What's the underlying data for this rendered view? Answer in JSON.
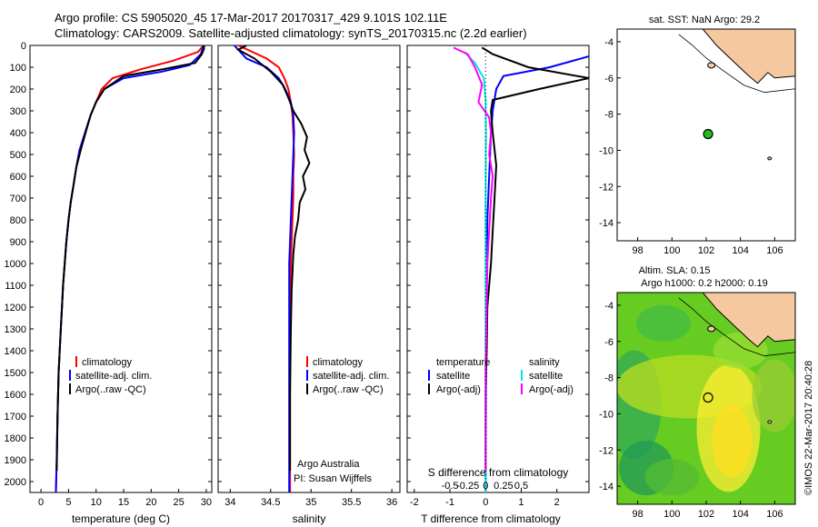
{
  "header": {
    "title_line1": "Argo profile: CS 5905020_45 17-Mar-2017 20170317_429 9.101S 102.11E",
    "title_line2": "Climatology: CARS2009. Satellite-adjusted climatology: synTS_20170315.nc (2.2d earlier)"
  },
  "colors": {
    "climatology": "#ff0000",
    "satellite": "#0000ff",
    "argo": "#000000",
    "sat_salinity": "#00e5e5",
    "argo_salinity": "#ff00ff",
    "land": "#f5c8a0",
    "float_marker": "#22bb22"
  },
  "depth_axis": {
    "ylim": [
      0,
      2050
    ],
    "ticks": [
      0,
      100,
      200,
      300,
      400,
      500,
      600,
      700,
      800,
      900,
      1000,
      1100,
      1200,
      1300,
      1400,
      1500,
      1600,
      1700,
      1800,
      1900,
      2000
    ]
  },
  "panel_temp": {
    "xlabel": "temperature (deg C)",
    "xlim": [
      -2,
      31
    ],
    "xticks": [
      0,
      5,
      10,
      15,
      20,
      25,
      30
    ],
    "legend": [
      "climatology",
      "satellite-adj. clim.",
      "Argo(..raw -QC)"
    ]
  },
  "panel_sal": {
    "xlabel": "salinity",
    "xlim": [
      33.85,
      36.1
    ],
    "xticks": [
      34,
      34.5,
      35,
      35.5,
      36
    ],
    "xtick_labels": [
      "34",
      "34.5",
      "35",
      "35.5",
      "36"
    ],
    "legend": [
      "climatology",
      "satellite-adj. clim.",
      "Argo(..raw -QC)"
    ],
    "note1": "Argo Australia",
    "note2": "PI: Susan Wijffels"
  },
  "panel_diff": {
    "xlabel_bottom": "T difference from climatology",
    "xlabel_top": "S difference from climatology",
    "xlim": [
      -2.2,
      2.9
    ],
    "bottom_ticks": [
      -2,
      -1,
      0,
      1,
      2
    ],
    "bottom_tick_labels": [
      "-2",
      "-1",
      "0",
      "1",
      "2"
    ],
    "top_ticks": [
      -0.5,
      -0.25,
      0,
      0.25,
      0.5
    ],
    "top_tick_labels": [
      "-0.5",
      "-0.25",
      "0",
      "0.25",
      "0.5"
    ],
    "legend_temp_head": "temperature",
    "legend_sal_head": "salinity",
    "legend_items": [
      "satellite",
      "Argo(-adj)",
      "satellite",
      "Argo(-adj)"
    ]
  },
  "map_sst": {
    "title": "sat. SST: NaN Argo: 29.2",
    "xlim": [
      96.8,
      107.2
    ],
    "ylim": [
      -15,
      -3.3
    ],
    "xticks": [
      98,
      100,
      102,
      104,
      106
    ],
    "yticks": [
      -4,
      -6,
      -8,
      -10,
      -12,
      -14
    ],
    "float": {
      "lon": 102.11,
      "lat": -9.101
    }
  },
  "map_sla": {
    "title1": "Altim. SLA: 0.15",
    "title2": "Argo h1000: 0.2 h2000: 0.19",
    "xlim": [
      96.8,
      107.2
    ],
    "ylim": [
      -15,
      -3.3
    ],
    "xticks": [
      98,
      100,
      102,
      104,
      106
    ],
    "yticks": [
      -4,
      -6,
      -8,
      -10,
      -12,
      -14
    ],
    "float": {
      "lon": 102.11,
      "lat": -9.101
    }
  },
  "credit": "©IMOS 22-Mar-2017 20:40:28",
  "chart_data": [
    {
      "type": "line",
      "xlabel": "temperature (deg C)",
      "xlim": [
        -2,
        31
      ],
      "ylim": [
        0,
        2050
      ],
      "series": [
        {
          "name": "climatology",
          "color": "#ff0000",
          "x": [
            29.5,
            28.5,
            24,
            18,
            13,
            11,
            10,
            9,
            8,
            7,
            6.4,
            5.9,
            5.4,
            5,
            4.6,
            4.3,
            4,
            3.8,
            3.6,
            3.4,
            3.2,
            3,
            2.85,
            2.7
          ],
          "y": [
            0,
            30,
            70,
            110,
            150,
            200,
            260,
            320,
            400,
            480,
            560,
            640,
            720,
            800,
            900,
            1000,
            1100,
            1200,
            1300,
            1400,
            1500,
            1700,
            1900,
            2050
          ]
        },
        {
          "name": "satellite-adj. clim.",
          "color": "#0000ff",
          "x": [
            29.5,
            29,
            27,
            22,
            15,
            11.5,
            10,
            9,
            8,
            7,
            6.4,
            5.9,
            5.4,
            5,
            4.6,
            4.3,
            4,
            3.8,
            3.6,
            3.4,
            3.2,
            3,
            2.85,
            2.7
          ],
          "y": [
            0,
            40,
            90,
            120,
            150,
            200,
            260,
            320,
            400,
            480,
            560,
            640,
            720,
            800,
            900,
            1000,
            1100,
            1200,
            1300,
            1400,
            1500,
            1700,
            1900,
            2050
          ]
        },
        {
          "name": "Argo(..raw -QC)",
          "color": "#000000",
          "x": [
            29.6,
            29.6,
            29.2,
            28,
            22,
            15,
            11.5,
            10,
            9,
            8.1,
            7.2,
            6.4,
            5.9,
            5.4,
            5,
            4.6,
            4.3,
            4,
            3.8,
            3.6,
            3.4,
            3.2,
            3,
            2.85
          ],
          "y": [
            0,
            15,
            40,
            80,
            110,
            140,
            200,
            260,
            320,
            400,
            480,
            560,
            640,
            720,
            800,
            900,
            1000,
            1100,
            1200,
            1300,
            1400,
            1500,
            1700,
            1950
          ]
        }
      ]
    },
    {
      "type": "line",
      "xlabel": "salinity",
      "xlim": [
        33.85,
        36.1
      ],
      "ylim": [
        0,
        2050
      ],
      "series": [
        {
          "name": "climatology",
          "color": "#ff0000",
          "x": [
            34.1,
            34.45,
            34.6,
            34.67,
            34.72,
            34.75,
            34.77,
            34.78,
            34.79,
            34.78,
            34.78,
            34.77,
            34.76,
            34.75,
            34.74,
            34.74,
            34.74,
            34.74
          ],
          "y": [
            0,
            60,
            100,
            150,
            200,
            260,
            320,
            400,
            500,
            600,
            700,
            800,
            900,
            1000,
            1200,
            1500,
            1800,
            2050
          ]
        },
        {
          "name": "satellite-adj. clim.",
          "color": "#0000ff",
          "x": [
            34.05,
            34.2,
            34.45,
            34.6,
            34.68,
            34.75,
            34.78,
            34.79,
            34.78,
            34.77,
            34.76,
            34.75,
            34.74,
            34.73,
            34.73,
            34.73,
            34.73
          ],
          "y": [
            0,
            60,
            100,
            150,
            200,
            260,
            320,
            400,
            500,
            600,
            700,
            800,
            900,
            1000,
            1200,
            1500,
            2050
          ]
        },
        {
          "name": "Argo(..raw -QC)",
          "color": "#000000",
          "x": [
            34.2,
            34.1,
            34.3,
            34.5,
            34.65,
            34.72,
            34.78,
            34.88,
            34.95,
            34.92,
            34.98,
            34.9,
            34.93,
            34.86,
            34.84,
            34.8,
            34.78,
            34.77,
            34.76,
            34.75,
            34.74,
            34.74
          ],
          "y": [
            0,
            20,
            60,
            120,
            180,
            240,
            300,
            360,
            420,
            480,
            540,
            600,
            660,
            720,
            800,
            880,
            960,
            1040,
            1120,
            1300,
            1600,
            1950
          ]
        }
      ]
    },
    {
      "type": "line",
      "xlabel": "T difference from climatology",
      "xlim": [
        -2.2,
        2.9
      ],
      "ylim": [
        0,
        2050
      ],
      "series": [
        {
          "name": "satellite (temperature)",
          "color": "#0000ff",
          "x": [
            2.9,
            1.8,
            0.5,
            0.3,
            0.2,
            0.15,
            0.1,
            0.05,
            0.03,
            0.02,
            0.01,
            0
          ],
          "y": [
            50,
            100,
            140,
            200,
            300,
            400,
            600,
            800,
            1000,
            1300,
            1600,
            2050
          ]
        },
        {
          "name": "Argo(-adj) (temperature)",
          "color": "#000000",
          "x": [
            -0.1,
            0.2,
            1.2,
            2.9,
            1.5,
            0.2,
            0.15,
            0.2,
            0.3,
            0.25,
            0.2,
            0.15,
            0.1,
            0.05,
            0.03,
            0,
            0
          ],
          "y": [
            10,
            40,
            100,
            150,
            200,
            250,
            300,
            400,
            550,
            700,
            850,
            1000,
            1100,
            1200,
            1400,
            1600,
            1950
          ]
        },
        {
          "name": "satellite (salinity)",
          "color": "#00e5e5",
          "x": [
            -0.6,
            -0.3,
            -0.05,
            0,
            0.01,
            0,
            0,
            0,
            0
          ],
          "y": [
            30,
            80,
            150,
            250,
            400,
            700,
            1000,
            1500,
            2050
          ]
        },
        {
          "name": "Argo(-adj) (salinity)",
          "color": "#ff00ff",
          "x": [
            -0.9,
            -0.5,
            -0.3,
            -0.1,
            -0.2,
            0.1,
            0.15,
            0.1,
            0.2,
            0.15,
            0.1,
            0.05,
            0.03,
            0,
            0
          ],
          "y": [
            10,
            40,
            100,
            180,
            260,
            330,
            400,
            500,
            600,
            700,
            850,
            1000,
            1200,
            1500,
            1950
          ]
        }
      ]
    }
  ]
}
